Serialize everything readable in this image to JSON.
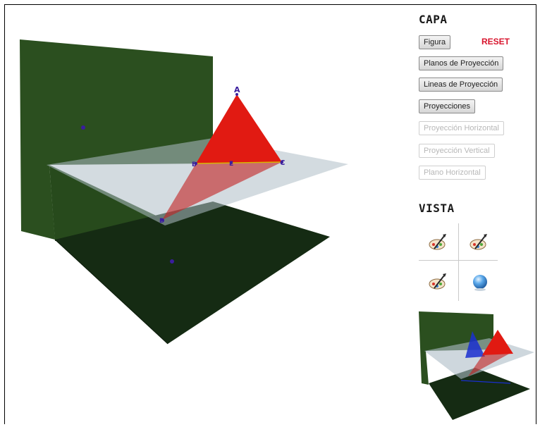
{
  "scene": {
    "points": {
      "A": "A",
      "B": "B",
      "C": "C",
      "D": "D",
      "E": "E"
    },
    "colors": {
      "vertical_plane": "#2b4f1f",
      "horizontal_plane": "#122712",
      "projection_plane": "#7f8ea0",
      "triangle": "#e11a12",
      "point": "#3a1d9e"
    }
  },
  "capa": {
    "title": "CAPA",
    "figura": "Figura",
    "reset": "RESET",
    "planos": "Planos de Proyección",
    "lineas": "Lineas de Proyección",
    "proyecciones": "Proyecciones",
    "proy_horizontal": "Proyección Horizontal",
    "proy_vertical": "Proyección Vertical",
    "plano_horizontal": "Plano Horizontal"
  },
  "vista": {
    "title": "VISTA",
    "buttons": [
      "view-top-left",
      "view-top-right",
      "view-bottom-left",
      "view-3d-sphere"
    ]
  }
}
